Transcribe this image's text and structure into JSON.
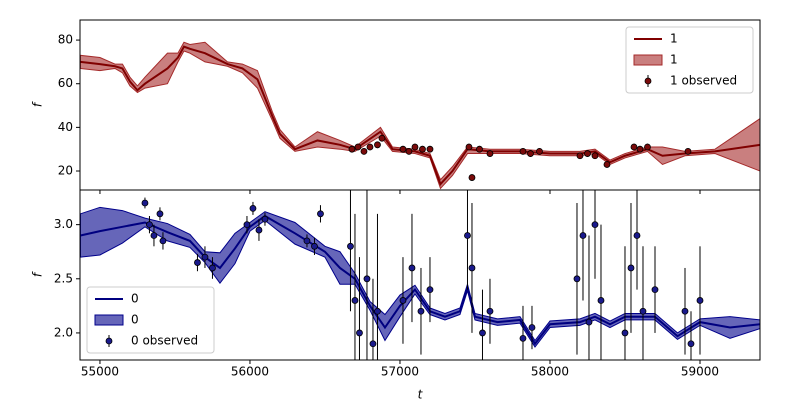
{
  "chart_data": [
    {
      "type": "line",
      "ylabel": "f",
      "xlim": [
        54867,
        59400
      ],
      "ylim": [
        11.3,
        89.2
      ],
      "xticks": [
        55000,
        56000,
        57000,
        58000,
        59000
      ],
      "yticks": [
        20,
        40,
        60,
        80
      ],
      "legend": "upper right",
      "series": [
        {
          "name": "1",
          "type": "line",
          "color": "#800000",
          "x": [
            54870,
            55000,
            55100,
            55150,
            55200,
            55250,
            55300,
            55450,
            55520,
            55560,
            55600,
            55700,
            55850,
            55950,
            56050,
            56150,
            56200,
            56300,
            56450,
            56600,
            56700,
            56870,
            56950,
            57100,
            57200,
            57270,
            57350,
            57450,
            57600,
            57800,
            58000,
            58200,
            58300,
            58400,
            58500,
            58650,
            58750,
            58900,
            59100,
            59400
          ],
          "values": [
            70,
            69,
            68,
            67,
            61,
            57,
            60,
            67,
            72,
            77,
            76,
            74,
            69,
            67,
            62,
            45,
            37,
            30,
            34,
            32,
            30,
            38,
            30,
            29,
            27,
            14,
            20,
            30,
            29,
            29,
            28,
            28,
            29,
            24,
            27,
            30,
            27,
            28,
            29,
            32
          ]
        },
        {
          "name": "1",
          "type": "band",
          "color": "#a52a2a",
          "x": [
            54870,
            55000,
            55100,
            55150,
            55200,
            55250,
            55300,
            55450,
            55520,
            55560,
            55600,
            55700,
            55850,
            55950,
            56050,
            56150,
            56200,
            56300,
            56450,
            56600,
            56700,
            56870,
            56950,
            57100,
            57200,
            57270,
            57350,
            57450,
            57600,
            57800,
            58000,
            58200,
            58300,
            58400,
            58500,
            58650,
            58750,
            58900,
            59100,
            59400
          ],
          "lower": [
            67,
            66,
            67,
            65,
            59,
            56,
            58,
            60,
            70,
            75,
            74,
            70,
            68,
            65,
            58,
            43,
            35,
            29,
            31,
            30,
            29,
            36,
            29,
            28,
            26,
            12,
            18,
            28,
            28,
            28,
            27,
            27,
            28,
            23,
            26,
            29,
            23,
            27,
            28,
            20
          ],
          "upper": [
            73,
            72,
            69,
            69,
            63,
            59,
            63,
            74,
            74,
            79,
            78,
            79,
            70,
            69,
            66,
            47,
            39,
            31,
            38,
            34,
            31,
            40,
            31,
            30,
            28,
            16,
            22,
            31,
            30,
            30,
            29,
            29,
            30,
            25,
            28,
            31,
            31,
            29,
            30,
            44
          ]
        },
        {
          "name": "1 observed",
          "type": "errorbar",
          "color": "#7a0a0a",
          "x": [
            56680,
            56720,
            56760,
            56800,
            56850,
            56880,
            57020,
            57060,
            57100,
            57150,
            57200,
            57460,
            57480,
            57530,
            57600,
            57820,
            57870,
            57930,
            58200,
            58250,
            58300,
            58380,
            58560,
            58600,
            58650,
            58920
          ],
          "values": [
            30,
            31,
            29,
            31,
            32,
            35,
            30,
            29,
            31,
            30,
            30,
            31,
            17,
            30,
            28,
            29,
            28,
            29,
            27,
            28,
            27,
            23,
            31,
            30,
            31,
            29
          ],
          "errors": [
            1.5,
            1.5,
            1.5,
            1.5,
            1.5,
            1.5,
            1.5,
            1.5,
            1.5,
            1.5,
            1.5,
            1.5,
            1.5,
            1.5,
            1.5,
            1.5,
            1.5,
            1.5,
            1.5,
            1.5,
            1.5,
            1.5,
            1.5,
            1.5,
            1.5,
            1.5
          ]
        }
      ]
    },
    {
      "type": "line",
      "xlabel": "t",
      "ylabel": "f",
      "xlim": [
        54867,
        59400
      ],
      "ylim": [
        1.75,
        3.32
      ],
      "xticks": [
        55000,
        56000,
        57000,
        58000,
        59000
      ],
      "yticks": [
        {
          "value": 2,
          "label": "2.0"
        },
        2.5,
        {
          "value": 3,
          "label": "3.0"
        }
      ],
      "legend": "lower left",
      "series": [
        {
          "name": "0",
          "type": "line",
          "color": "#000080",
          "x": [
            54870,
            55000,
            55150,
            55300,
            55450,
            55600,
            55700,
            55800,
            55900,
            56000,
            56100,
            56300,
            56500,
            56600,
            56700,
            56800,
            56900,
            57000,
            57100,
            57200,
            57300,
            57400,
            57450,
            57500,
            57650,
            57800,
            57900,
            58000,
            58200,
            58300,
            58400,
            58500,
            58700,
            58850,
            59000,
            59200,
            59400
          ],
          "values": [
            2.9,
            2.94,
            2.98,
            3.02,
            2.93,
            2.85,
            2.7,
            2.6,
            2.78,
            2.98,
            3.08,
            2.92,
            2.75,
            2.6,
            2.5,
            2.25,
            2.05,
            2.25,
            2.4,
            2.2,
            2.15,
            2.2,
            2.42,
            2.15,
            2.1,
            2.12,
            1.9,
            2.08,
            2.1,
            2.15,
            2.08,
            2.15,
            2.15,
            1.97,
            2.1,
            2.05,
            2.08
          ]
        },
        {
          "name": "0",
          "type": "band",
          "color": "#00008b",
          "x": [
            54870,
            55000,
            55150,
            55300,
            55450,
            55600,
            55700,
            55800,
            55900,
            56000,
            56100,
            56300,
            56500,
            56600,
            56700,
            56800,
            56900,
            57000,
            57100,
            57200,
            57300,
            57400,
            57450,
            57500,
            57650,
            57800,
            57900,
            58000,
            58200,
            58300,
            58400,
            58500,
            58700,
            58850,
            59000,
            59200,
            59400
          ],
          "lower": [
            2.7,
            2.72,
            2.83,
            2.98,
            2.85,
            2.79,
            2.65,
            2.46,
            2.64,
            2.94,
            3.04,
            2.82,
            2.7,
            2.45,
            2.45,
            2.21,
            1.93,
            2.15,
            2.36,
            2.17,
            2.12,
            2.17,
            2.39,
            2.12,
            2.07,
            2.09,
            1.87,
            2.05,
            2.07,
            2.12,
            2.05,
            2.12,
            2.12,
            1.94,
            2.07,
            1.95,
            2.04
          ],
          "upper": [
            3.1,
            3.16,
            3.13,
            3.06,
            3.01,
            2.91,
            2.75,
            2.74,
            2.92,
            3.02,
            3.12,
            3.02,
            2.8,
            2.75,
            2.55,
            2.29,
            2.17,
            2.35,
            2.44,
            2.23,
            2.18,
            2.23,
            2.45,
            2.18,
            2.13,
            2.15,
            1.93,
            2.11,
            2.13,
            2.18,
            2.11,
            2.18,
            2.18,
            2.0,
            2.13,
            2.15,
            2.12
          ]
        },
        {
          "name": "0 observed",
          "type": "errorbar",
          "color": "#1a1a8c",
          "x": [
            55300,
            55330,
            55360,
            55400,
            55420,
            55650,
            55700,
            55750,
            55980,
            56020,
            56060,
            56100,
            56380,
            56430,
            56470,
            56670,
            56700,
            56730,
            56780,
            56820,
            56850,
            57020,
            57080,
            57140,
            57200,
            57450,
            57480,
            57550,
            57600,
            57820,
            57880,
            58180,
            58220,
            58260,
            58300,
            58340,
            58500,
            58540,
            58580,
            58620,
            58700,
            58900,
            58940,
            59000
          ],
          "values": [
            3.2,
            3.0,
            2.9,
            3.1,
            2.85,
            2.65,
            2.7,
            2.6,
            3.0,
            3.15,
            2.95,
            3.05,
            2.85,
            2.8,
            3.1,
            2.8,
            2.3,
            2.0,
            2.5,
            1.9,
            2.2,
            2.3,
            2.6,
            2.2,
            2.4,
            2.9,
            2.6,
            2.0,
            2.2,
            1.95,
            2.05,
            2.5,
            2.9,
            2.1,
            3.0,
            2.3,
            2.0,
            2.6,
            2.9,
            2.2,
            2.4,
            2.2,
            1.9,
            2.3
          ],
          "errors": [
            0.05,
            0.08,
            0.1,
            0.06,
            0.08,
            0.08,
            0.1,
            0.1,
            0.08,
            0.06,
            0.1,
            0.06,
            0.06,
            0.08,
            0.08,
            0.6,
            0.8,
            0.7,
            0.9,
            0.6,
            0.9,
            0.4,
            0.5,
            0.4,
            0.3,
            0.5,
            0.6,
            0.4,
            0.3,
            0.3,
            0.2,
            0.7,
            0.6,
            0.8,
            0.5,
            0.7,
            0.8,
            0.6,
            0.5,
            0.6,
            0.4,
            0.4,
            0.3,
            0.5
          ]
        }
      ]
    }
  ]
}
